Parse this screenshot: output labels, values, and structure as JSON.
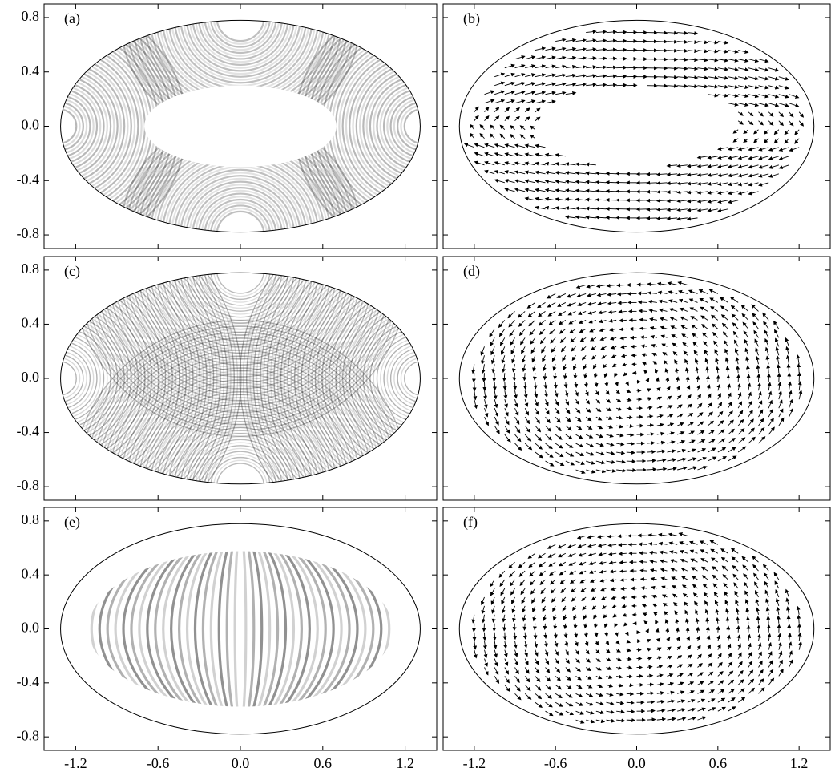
{
  "axes": {
    "xlim": [
      -1.43,
      1.43
    ],
    "ylim": [
      -0.9,
      0.9
    ],
    "xticks": [
      -1.2,
      -0.6,
      {
        "value": 0,
        "label": "0.0"
      },
      0.6,
      1.2
    ],
    "yticks": [
      0.8,
      0.4,
      {
        "value": 0,
        "label": "0.0"
      },
      -0.4,
      -0.8
    ]
  },
  "panels": [
    {
      "label": "(a)",
      "type": "density"
    },
    {
      "label": "(b)",
      "type": "quiver"
    },
    {
      "label": "(c)",
      "type": "density"
    },
    {
      "label": "(d)",
      "type": "quiver"
    },
    {
      "label": "(e)",
      "type": "density"
    },
    {
      "label": "(f)",
      "type": "quiver"
    }
  ]
}
